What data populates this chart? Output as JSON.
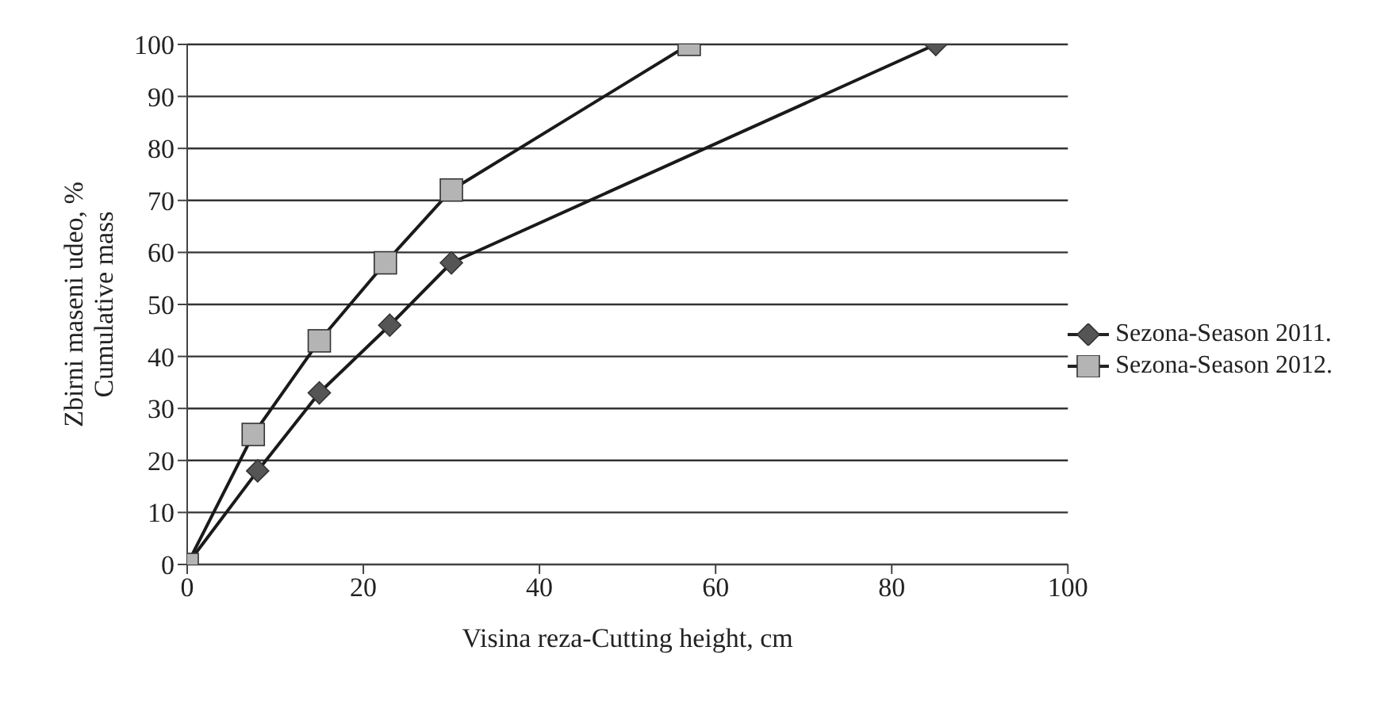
{
  "chart_data": {
    "type": "line",
    "xlabel": "Visina reza-Cutting height, cm",
    "ylabel": "Zbirni maseni udeo, %\nCumulative mass",
    "xlim": [
      0,
      100
    ],
    "xticks": [
      0,
      20,
      40,
      60,
      80,
      100
    ],
    "ylim": [
      0,
      100
    ],
    "yticks": [
      0,
      10,
      20,
      30,
      40,
      50,
      60,
      70,
      80,
      90,
      100
    ],
    "grid": "y",
    "legend": "right",
    "line_style": "solid",
    "series": [
      {
        "name": "Sezona-Season 2011.",
        "color": "#555555",
        "marker": "diamond",
        "x": [
          0,
          8,
          15,
          23,
          30,
          85
        ],
        "values": [
          0,
          18,
          33,
          46,
          58,
          100
        ]
      },
      {
        "name": "Sezona-Season 2012.",
        "color": "#b4b4b4",
        "marker": "square",
        "x": [
          0,
          7.5,
          15,
          22.5,
          30,
          57
        ],
        "values": [
          0,
          25,
          43,
          58,
          72,
          100
        ]
      }
    ]
  }
}
